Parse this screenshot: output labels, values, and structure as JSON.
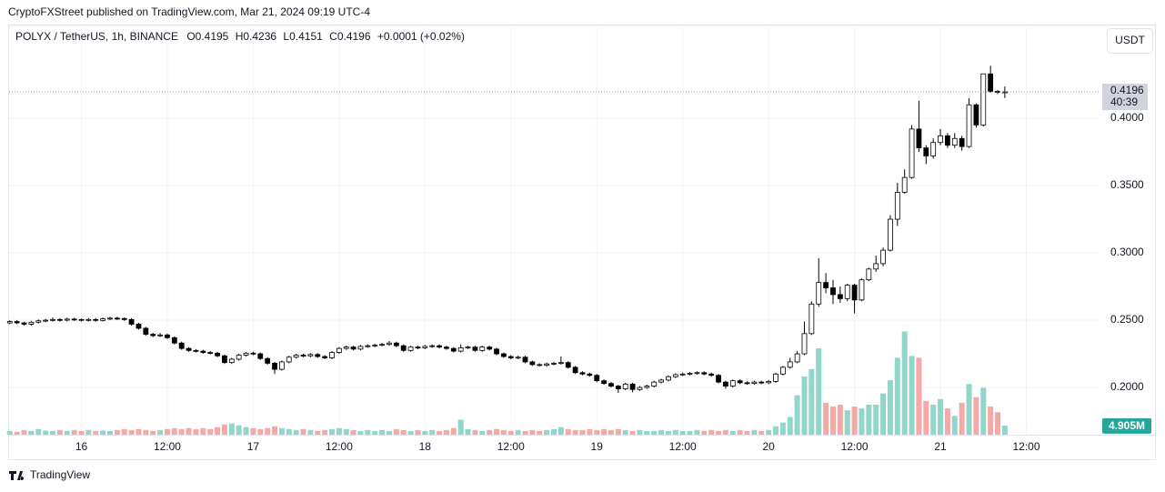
{
  "chart_data": {
    "type": "candlestick",
    "header": "CryptoFXStreet published on TradingView.com, Mar 21, 2024 09:19 UTC-4",
    "symbol": "POLYX / TetherUS, 1h, BINANCE",
    "legend_ohlc": [
      {
        "key": "O",
        "value": "0.4195"
      },
      {
        "key": "H",
        "value": "0.4236"
      },
      {
        "key": "L",
        "value": "0.4151"
      },
      {
        "key": "C",
        "value": "0.4196"
      }
    ],
    "change": "+0.0001 (+0.02%)",
    "currency": "USDT",
    "brand": "TradingView",
    "last_price_label": "0.4196",
    "countdown": "40:39",
    "up_color": "#ffffff",
    "down_color": "#000000",
    "wick_color": "#000000",
    "grid": true,
    "xlim": [
      -0.1,
      152.1
    ],
    "xticks": [
      {
        "value": 10,
        "label": "16"
      },
      {
        "value": 22,
        "label": "12:00"
      },
      {
        "value": 34,
        "label": "17"
      },
      {
        "value": 46,
        "label": "12:00"
      },
      {
        "value": 58,
        "label": "18"
      },
      {
        "value": 70,
        "label": "12:00"
      },
      {
        "value": 82,
        "label": "19"
      },
      {
        "value": 94,
        "label": "12:00"
      },
      {
        "value": 106,
        "label": "20"
      },
      {
        "value": 118,
        "label": "12:00"
      },
      {
        "value": 130,
        "label": "21"
      },
      {
        "value": 142,
        "label": "12:00"
      }
    ],
    "ylim": [
      0.1649,
      0.4676
    ],
    "yticks": [
      {
        "value": 0.2,
        "label": "0.2000"
      },
      {
        "value": 0.25,
        "label": "0.2500"
      },
      {
        "value": 0.3,
        "label": "0.3000"
      },
      {
        "value": 0.35,
        "label": "0.3500"
      },
      {
        "value": 0.4,
        "label": "0.4000"
      }
    ],
    "open": [
      0.248,
      0.249,
      0.248,
      0.247,
      0.2485,
      0.2495,
      0.25,
      0.2505,
      0.25,
      0.2508,
      0.2505,
      0.25,
      0.2505,
      0.2498,
      0.251,
      0.2515,
      0.2512,
      0.2505,
      0.247,
      0.244,
      0.2395,
      0.2385,
      0.239,
      0.237,
      0.233,
      0.229,
      0.2275,
      0.227,
      0.226,
      0.2255,
      0.2235,
      0.2185,
      0.221,
      0.224,
      0.2255,
      0.225,
      0.2215,
      0.218,
      0.2135,
      0.219,
      0.2225,
      0.224,
      0.2235,
      0.2245,
      0.223,
      0.222,
      0.226,
      0.229,
      0.23,
      0.2285,
      0.2305,
      0.231,
      0.2315,
      0.232,
      0.233,
      0.231,
      0.2275,
      0.23,
      0.2295,
      0.2305,
      0.231,
      0.23,
      0.229,
      0.227,
      0.2295,
      0.23,
      0.2275,
      0.23,
      0.2285,
      0.225,
      0.223,
      0.222,
      0.2225,
      0.219,
      0.217,
      0.2165,
      0.2175,
      0.218,
      0.2185,
      0.215,
      0.211,
      0.21,
      0.209,
      0.205,
      0.203,
      0.201,
      0.199,
      0.2025,
      0.1985,
      0.2,
      0.201,
      0.204,
      0.2055,
      0.208,
      0.2095,
      0.21,
      0.2105,
      0.211,
      0.21,
      0.209,
      0.204,
      0.201,
      0.205,
      0.2035,
      0.203,
      0.204,
      0.2035,
      0.2045,
      0.21,
      0.215,
      0.219,
      0.225,
      0.24,
      0.262,
      0.278,
      0.274,
      0.269,
      0.266,
      0.276,
      0.265,
      0.28,
      0.288,
      0.292,
      0.302,
      0.325,
      0.345,
      0.356,
      0.392,
      0.378,
      0.372,
      0.382,
      0.387,
      0.38,
      0.385,
      0.379,
      0.41,
      0.395,
      0.433,
      0.42,
      0.4195
    ],
    "high": [
      0.25,
      0.25,
      0.249,
      0.2495,
      0.2505,
      0.251,
      0.252,
      0.2515,
      0.2518,
      0.2518,
      0.2512,
      0.2515,
      0.2515,
      0.252,
      0.2525,
      0.2525,
      0.252,
      0.2515,
      0.248,
      0.245,
      0.2405,
      0.2405,
      0.24,
      0.238,
      0.234,
      0.23,
      0.2285,
      0.228,
      0.227,
      0.2265,
      0.2245,
      0.222,
      0.225,
      0.2265,
      0.2265,
      0.226,
      0.2225,
      0.219,
      0.22,
      0.2235,
      0.225,
      0.225,
      0.2255,
      0.2255,
      0.224,
      0.227,
      0.23,
      0.231,
      0.231,
      0.2315,
      0.232,
      0.2325,
      0.233,
      0.2345,
      0.234,
      0.232,
      0.231,
      0.231,
      0.2315,
      0.232,
      0.232,
      0.231,
      0.23,
      0.232,
      0.231,
      0.231,
      0.231,
      0.231,
      0.2295,
      0.226,
      0.224,
      0.2235,
      0.2235,
      0.22,
      0.218,
      0.2185,
      0.219,
      0.223,
      0.2195,
      0.216,
      0.212,
      0.211,
      0.21,
      0.206,
      0.204,
      0.202,
      0.2035,
      0.2035,
      0.201,
      0.202,
      0.205,
      0.2065,
      0.209,
      0.2105,
      0.211,
      0.2115,
      0.212,
      0.212,
      0.211,
      0.21,
      0.205,
      0.206,
      0.206,
      0.2045,
      0.205,
      0.205,
      0.2055,
      0.211,
      0.216,
      0.222,
      0.227,
      0.249,
      0.264,
      0.296,
      0.285,
      0.28,
      0.275,
      0.277,
      0.277,
      0.281,
      0.289,
      0.298,
      0.304,
      0.328,
      0.352,
      0.362,
      0.395,
      0.413,
      0.38,
      0.385,
      0.392,
      0.389,
      0.389,
      0.387,
      0.415,
      0.411,
      0.433,
      0.439,
      0.421,
      0.4236
    ],
    "low": [
      0.247,
      0.247,
      0.246,
      0.246,
      0.2475,
      0.2485,
      0.249,
      0.249,
      0.249,
      0.2495,
      0.249,
      0.249,
      0.2488,
      0.249,
      0.25,
      0.2502,
      0.2495,
      0.246,
      0.243,
      0.2385,
      0.2375,
      0.2375,
      0.236,
      0.232,
      0.228,
      0.2265,
      0.226,
      0.225,
      0.2245,
      0.2225,
      0.2175,
      0.2175,
      0.22,
      0.223,
      0.224,
      0.2205,
      0.217,
      0.21,
      0.2125,
      0.218,
      0.2215,
      0.2225,
      0.2225,
      0.222,
      0.221,
      0.221,
      0.225,
      0.228,
      0.2275,
      0.2275,
      0.2295,
      0.23,
      0.2305,
      0.231,
      0.23,
      0.2265,
      0.2265,
      0.2285,
      0.2285,
      0.2295,
      0.229,
      0.228,
      0.226,
      0.226,
      0.2285,
      0.2265,
      0.2265,
      0.2275,
      0.224,
      0.222,
      0.221,
      0.221,
      0.218,
      0.216,
      0.2155,
      0.2155,
      0.2165,
      0.217,
      0.214,
      0.21,
      0.209,
      0.208,
      0.204,
      0.202,
      0.2,
      0.196,
      0.198,
      0.1965,
      0.1975,
      0.199,
      0.2,
      0.203,
      0.2045,
      0.207,
      0.2085,
      0.209,
      0.2095,
      0.209,
      0.208,
      0.203,
      0.199,
      0.2,
      0.2025,
      0.202,
      0.202,
      0.2025,
      0.2025,
      0.2035,
      0.209,
      0.214,
      0.218,
      0.224,
      0.239,
      0.26,
      0.27,
      0.262,
      0.263,
      0.264,
      0.255,
      0.264,
      0.279,
      0.286,
      0.29,
      0.301,
      0.32,
      0.344,
      0.355,
      0.375,
      0.366,
      0.37,
      0.38,
      0.378,
      0.378,
      0.376,
      0.378,
      0.393,
      0.394,
      0.419,
      0.418,
      0.4151
    ],
    "close": [
      0.249,
      0.248,
      0.247,
      0.2485,
      0.2495,
      0.25,
      0.2505,
      0.25,
      0.2508,
      0.2505,
      0.25,
      0.2505,
      0.2498,
      0.251,
      0.2515,
      0.2512,
      0.2505,
      0.247,
      0.244,
      0.2395,
      0.2385,
      0.239,
      0.237,
      0.233,
      0.229,
      0.2275,
      0.227,
      0.226,
      0.2255,
      0.2235,
      0.2185,
      0.221,
      0.224,
      0.2255,
      0.225,
      0.2215,
      0.218,
      0.2135,
      0.219,
      0.2225,
      0.224,
      0.2235,
      0.2245,
      0.223,
      0.222,
      0.226,
      0.229,
      0.23,
      0.2285,
      0.2305,
      0.231,
      0.2315,
      0.232,
      0.233,
      0.231,
      0.2275,
      0.23,
      0.2295,
      0.2305,
      0.231,
      0.23,
      0.229,
      0.227,
      0.2295,
      0.23,
      0.2275,
      0.23,
      0.2285,
      0.225,
      0.223,
      0.222,
      0.2225,
      0.219,
      0.217,
      0.2165,
      0.2175,
      0.218,
      0.2185,
      0.215,
      0.211,
      0.21,
      0.209,
      0.205,
      0.203,
      0.201,
      0.199,
      0.2025,
      0.1985,
      0.2,
      0.201,
      0.204,
      0.2055,
      0.208,
      0.2095,
      0.21,
      0.2105,
      0.211,
      0.21,
      0.209,
      0.204,
      0.201,
      0.205,
      0.2035,
      0.203,
      0.204,
      0.2035,
      0.2045,
      0.21,
      0.215,
      0.219,
      0.225,
      0.24,
      0.262,
      0.278,
      0.274,
      0.269,
      0.266,
      0.276,
      0.265,
      0.28,
      0.288,
      0.292,
      0.302,
      0.325,
      0.345,
      0.356,
      0.392,
      0.378,
      0.372,
      0.382,
      0.387,
      0.38,
      0.385,
      0.379,
      0.41,
      0.395,
      0.433,
      0.42,
      0.4195,
      0.4196
    ],
    "volume": {
      "up_color": "#92d5ca",
      "down_color": "#f5a9a5",
      "label_color": "#26a69a",
      "lim": [
        0,
        63
      ],
      "last_label": "4.905M",
      "values": [
        2.0,
        1.5,
        2.5,
        2.0,
        3.0,
        2.2,
        2.0,
        2.5,
        2.0,
        2.5,
        2.0,
        2.5,
        2.0,
        2.2,
        2.0,
        2.5,
        3.0,
        2.5,
        3.0,
        2.5,
        2.0,
        2.5,
        3.0,
        3.5,
        3.0,
        3.5,
        3.0,
        3.5,
        3.0,
        4.0,
        5.5,
        6.0,
        5.0,
        4.0,
        3.5,
        3.0,
        3.5,
        4.5,
        3.5,
        3.0,
        2.5,
        3.0,
        2.5,
        2.0,
        2.5,
        3.0,
        3.5,
        3.0,
        2.5,
        2.0,
        2.5,
        2.0,
        2.5,
        2.0,
        3.0,
        2.5,
        2.0,
        2.5,
        2.0,
        2.5,
        2.0,
        2.5,
        3.5,
        8.0,
        3.0,
        2.5,
        2.0,
        2.5,
        3.0,
        2.5,
        2.0,
        2.5,
        2.0,
        2.5,
        2.0,
        2.5,
        3.0,
        4.0,
        3.0,
        2.5,
        2.5,
        3.0,
        2.5,
        3.0,
        2.5,
        3.0,
        2.5,
        2.0,
        2.5,
        2.0,
        2.0,
        2.5,
        2.0,
        2.5,
        2.0,
        2.0,
        2.5,
        2.0,
        2.5,
        2.0,
        2.5,
        2.0,
        2.5,
        2.0,
        2.5,
        2.0,
        2.5,
        4.5,
        6.5,
        9.5,
        21,
        31,
        35,
        46,
        17,
        15,
        16,
        13,
        15,
        14,
        16,
        16,
        22,
        29,
        41,
        55,
        42,
        41,
        18,
        16,
        19,
        14,
        10,
        17,
        27,
        20,
        25,
        15,
        12,
        4.905
      ]
    }
  }
}
